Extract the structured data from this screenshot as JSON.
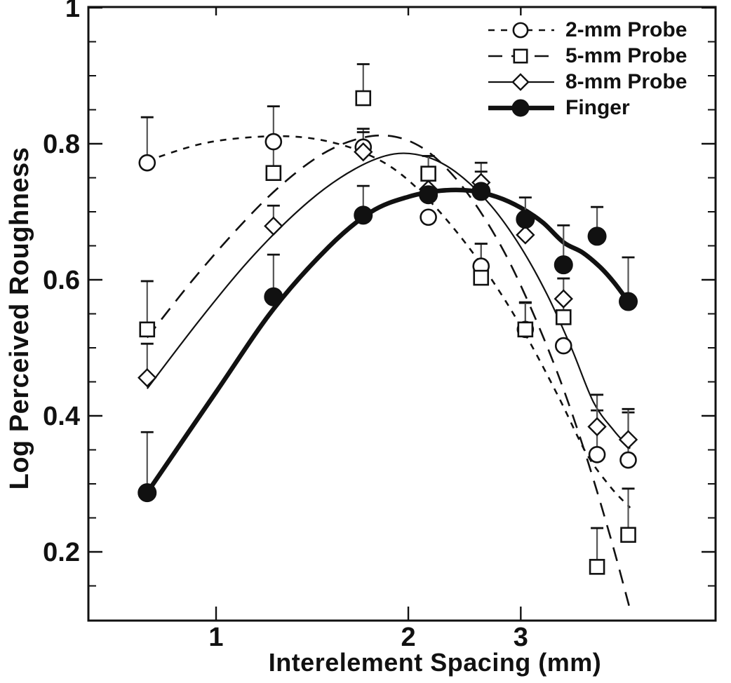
{
  "figure": {
    "background": "#ffffff",
    "ink_color": "#111111",
    "error_bar_color": "#555555"
  },
  "axes": {
    "x": {
      "label": "Interelement Spacing (mm)",
      "scale": "log10",
      "tick_values": [
        1,
        2,
        3
      ],
      "tick_labels": [
        "1",
        "2",
        "3"
      ],
      "range": [
        0.63,
        6.0
      ]
    },
    "y": {
      "label": "Log Perceived Roughness",
      "scale": "linear",
      "tick_values": [
        1,
        0.8,
        0.6,
        0.4,
        0.2
      ],
      "tick_labels": [
        "1",
        "0.8",
        "0.6",
        "0.4",
        "0.2"
      ],
      "minor_tick_values": [
        0.95,
        0.9,
        0.85,
        0.75,
        0.7,
        0.65,
        0.55,
        0.5,
        0.45,
        0.35,
        0.3,
        0.25,
        0.15
      ],
      "range": [
        0.1,
        1.0
      ]
    }
  },
  "legend": {
    "position": "top-right",
    "items": [
      "2-mm Probe",
      "5-mm Probe",
      "8-mm Probe",
      "Finger"
    ]
  },
  "chart_data": {
    "type": "scatter",
    "title": "",
    "xlabel": "Interelement Spacing (mm)",
    "ylabel": "Log Perceived Roughness",
    "x_scale": "log10",
    "xlim": [
      0.63,
      6.0
    ],
    "ylim": [
      0.1,
      1.0
    ],
    "grid": false,
    "error_bars": "upper-only",
    "legend_position": "top-right",
    "x_values_mm": [
      0.78,
      1.23,
      1.7,
      2.15,
      2.6,
      3.05,
      3.5,
      3.95,
      4.42
    ],
    "series": [
      {
        "name": "2-mm Probe",
        "marker": "open-circle",
        "line_style": "short-dash",
        "line_width": 2.6,
        "points": [
          {
            "x": 0.78,
            "y": 0.772,
            "err_up": 0.067
          },
          {
            "x": 1.23,
            "y": 0.803,
            "err_up": 0.052
          },
          {
            "x": 1.7,
            "y": 0.795,
            "err_up": 0.027
          },
          {
            "x": 2.15,
            "y": 0.692,
            "err_up": 0
          },
          {
            "x": 2.6,
            "y": 0.62,
            "err_up": 0.033
          },
          {
            "x": 3.05,
            "y": 0.527,
            "err_up": 0.039
          },
          {
            "x": 3.5,
            "y": 0.503,
            "err_up": 0
          },
          {
            "x": 3.95,
            "y": 0.343,
            "err_up": 0.065
          },
          {
            "x": 4.42,
            "y": 0.335,
            "err_up": 0.07
          }
        ],
        "fit_curve": [
          [
            0.78,
            0.775
          ],
          [
            0.95,
            0.8
          ],
          [
            1.15,
            0.81
          ],
          [
            1.35,
            0.81
          ],
          [
            1.55,
            0.8
          ],
          [
            1.75,
            0.782
          ],
          [
            1.95,
            0.755
          ],
          [
            2.2,
            0.708
          ],
          [
            2.5,
            0.645
          ],
          [
            2.8,
            0.578
          ],
          [
            3.1,
            0.508
          ],
          [
            3.45,
            0.425
          ],
          [
            3.8,
            0.345
          ],
          [
            4.15,
            0.295
          ],
          [
            4.45,
            0.265
          ]
        ]
      },
      {
        "name": "5-mm Probe",
        "marker": "open-square",
        "line_style": "long-dash",
        "line_width": 2.6,
        "points": [
          {
            "x": 0.78,
            "y": 0.527,
            "err_up": 0.071
          },
          {
            "x": 1.23,
            "y": 0.757,
            "err_up": 0.046
          },
          {
            "x": 1.7,
            "y": 0.867,
            "err_up": 0.05
          },
          {
            "x": 2.15,
            "y": 0.756,
            "err_up": 0.026
          },
          {
            "x": 2.6,
            "y": 0.603,
            "err_up": 0.05
          },
          {
            "x": 3.05,
            "y": 0.527,
            "err_up": 0.04
          },
          {
            "x": 3.5,
            "y": 0.545,
            "err_up": 0.03
          },
          {
            "x": 3.95,
            "y": 0.178,
            "err_up": 0.057
          },
          {
            "x": 4.42,
            "y": 0.225,
            "err_up": 0.068
          }
        ],
        "fit_curve": [
          [
            0.78,
            0.515
          ],
          [
            0.92,
            0.6
          ],
          [
            1.08,
            0.675
          ],
          [
            1.25,
            0.735
          ],
          [
            1.45,
            0.782
          ],
          [
            1.65,
            0.806
          ],
          [
            1.85,
            0.812
          ],
          [
            2.05,
            0.8
          ],
          [
            2.25,
            0.772
          ],
          [
            2.5,
            0.722
          ],
          [
            2.8,
            0.648
          ],
          [
            3.1,
            0.562
          ],
          [
            3.45,
            0.455
          ],
          [
            3.8,
            0.34
          ],
          [
            4.15,
            0.22
          ],
          [
            4.45,
            0.115
          ]
        ]
      },
      {
        "name": "8-mm Probe",
        "marker": "open-diamond",
        "line_style": "solid",
        "line_width": 2.2,
        "points": [
          {
            "x": 0.78,
            "y": 0.456,
            "err_up": 0.05
          },
          {
            "x": 1.23,
            "y": 0.679,
            "err_up": 0.03
          },
          {
            "x": 1.7,
            "y": 0.788,
            "err_up": 0.029
          },
          {
            "x": 2.15,
            "y": 0.733,
            "err_up": 0
          },
          {
            "x": 2.6,
            "y": 0.743,
            "err_up": 0.029
          },
          {
            "x": 3.05,
            "y": 0.666,
            "err_up": 0
          },
          {
            "x": 3.5,
            "y": 0.572,
            "err_up": 0.03
          },
          {
            "x": 3.95,
            "y": 0.384,
            "err_up": 0.047
          },
          {
            "x": 4.42,
            "y": 0.365,
            "err_up": 0.045
          }
        ],
        "fit_curve": [
          [
            0.78,
            0.44
          ],
          [
            0.95,
            0.545
          ],
          [
            1.15,
            0.638
          ],
          [
            1.4,
            0.716
          ],
          [
            1.65,
            0.763
          ],
          [
            1.9,
            0.785
          ],
          [
            2.15,
            0.78
          ],
          [
            2.4,
            0.755
          ],
          [
            2.7,
            0.708
          ],
          [
            3.0,
            0.648
          ],
          [
            3.3,
            0.578
          ],
          [
            3.6,
            0.5
          ],
          [
            3.9,
            0.42
          ],
          [
            4.2,
            0.378
          ],
          [
            4.45,
            0.352
          ]
        ]
      },
      {
        "name": "Finger",
        "marker": "filled-circle",
        "line_style": "solid-thick",
        "line_width": 6.5,
        "points": [
          {
            "x": 0.78,
            "y": 0.287,
            "err_up": 0.089
          },
          {
            "x": 1.23,
            "y": 0.575,
            "err_up": 0.062
          },
          {
            "x": 1.7,
            "y": 0.695,
            "err_up": 0.043
          },
          {
            "x": 2.15,
            "y": 0.725,
            "err_up": 0
          },
          {
            "x": 2.6,
            "y": 0.73,
            "err_up": 0.029
          },
          {
            "x": 3.05,
            "y": 0.689,
            "err_up": 0.032
          },
          {
            "x": 3.5,
            "y": 0.622,
            "err_up": 0.058
          },
          {
            "x": 3.95,
            "y": 0.664,
            "err_up": 0.043
          },
          {
            "x": 4.42,
            "y": 0.568,
            "err_up": 0.065
          }
        ],
        "fit_curve": [
          [
            0.78,
            0.287
          ],
          [
            1.0,
            0.435
          ],
          [
            1.23,
            0.557
          ],
          [
            1.5,
            0.648
          ],
          [
            1.75,
            0.7
          ],
          [
            2.0,
            0.722
          ],
          [
            2.25,
            0.731
          ],
          [
            2.5,
            0.731
          ],
          [
            2.75,
            0.722
          ],
          [
            3.0,
            0.706
          ],
          [
            3.25,
            0.684
          ],
          [
            3.5,
            0.655
          ],
          [
            3.75,
            0.64
          ],
          [
            4.0,
            0.618
          ],
          [
            4.2,
            0.596
          ],
          [
            4.42,
            0.568
          ]
        ]
      }
    ]
  }
}
